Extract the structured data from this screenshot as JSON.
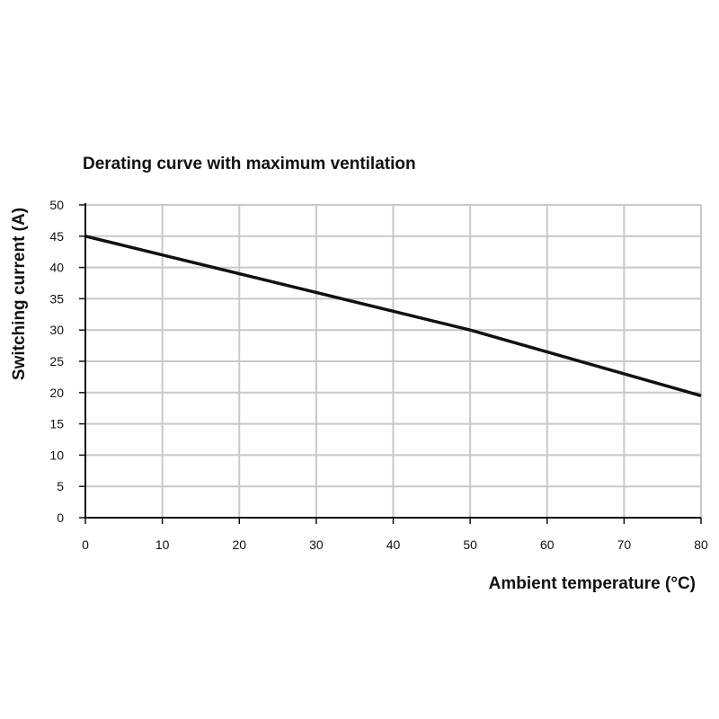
{
  "chart_data": {
    "type": "line",
    "title": "Derating curve with maximum ventilation",
    "xlabel": "Ambient temperature (°C)",
    "ylabel": "Switching current (A)",
    "xlim": [
      0,
      80
    ],
    "ylim": [
      0,
      50
    ],
    "x_ticks": [
      "0",
      "10",
      "20",
      "30",
      "40",
      "50",
      "60",
      "70",
      "80"
    ],
    "y_ticks": [
      "0",
      "5",
      "10",
      "15",
      "20",
      "25",
      "30",
      "35",
      "40",
      "45",
      "50"
    ],
    "grid": true,
    "series": [
      {
        "x": [
          0,
          10,
          20,
          30,
          40,
          50,
          60,
          70,
          80
        ],
        "y": [
          45,
          42,
          39,
          36,
          33,
          30,
          26.5,
          23,
          19.5
        ],
        "color": "#111111"
      }
    ],
    "colors": {
      "grid": "#c8c8c8",
      "line": "#111111",
      "text": "#111111"
    }
  }
}
